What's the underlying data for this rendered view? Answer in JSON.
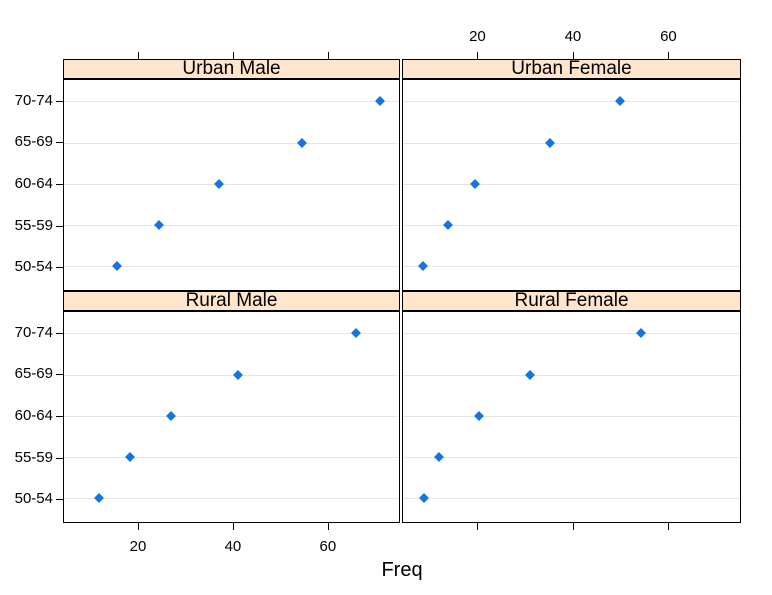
{
  "chart_data": {
    "type": "scatter",
    "subtype": "lattice-dotplot",
    "title": "",
    "xlabel": "Freq",
    "ylabel": "",
    "categories": [
      "50-54",
      "55-59",
      "60-64",
      "65-69",
      "70-74"
    ],
    "series": [
      {
        "name": "Urban Male",
        "panel": "top-left",
        "values": [
          15.4,
          24.3,
          37.0,
          54.6,
          71.1
        ]
      },
      {
        "name": "Urban Female",
        "panel": "top-right",
        "values": [
          8.4,
          13.6,
          19.3,
          35.1,
          50.0
        ]
      },
      {
        "name": "Rural Male",
        "panel": "bottom-left",
        "values": [
          11.7,
          18.1,
          26.9,
          41.0,
          66.0
        ]
      },
      {
        "name": "Rural Female",
        "panel": "bottom-right",
        "values": [
          8.7,
          11.7,
          20.3,
          30.9,
          54.3
        ]
      }
    ],
    "xlim": [
      4.2,
      75.2
    ],
    "x_ticks": [
      20,
      40,
      60
    ],
    "x_tick_labels_position": "top labels over right column, bottom labels under left column, tick marks on all panels",
    "grid": true,
    "legend": "none",
    "colors": {
      "point": "#1375e0",
      "strip_background": "#ffe5cc",
      "gridline": "#e5e5e5",
      "border": "#000000",
      "text": "#000000",
      "background": "#ffffff"
    }
  }
}
